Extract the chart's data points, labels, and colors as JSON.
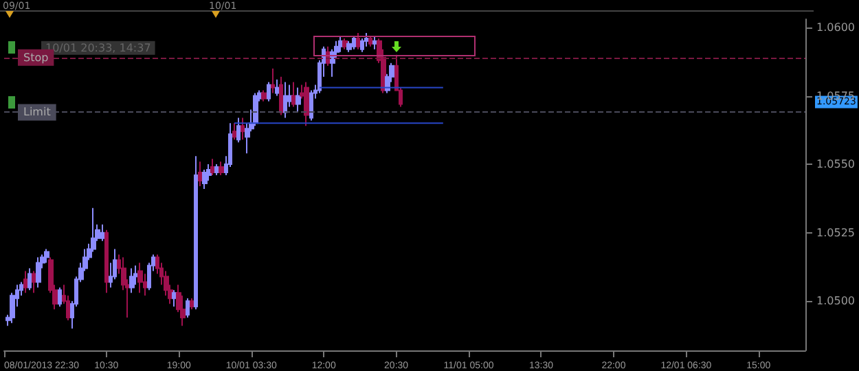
{
  "chart_data": {
    "type": "candlestick",
    "x": [
      "2013-01-08T23:00",
      "2013-01-08T23:30",
      "2013-01-09T00:00",
      "2013-01-09T00:30",
      "2013-01-09T01:00",
      "2013-01-09T01:30",
      "2013-01-09T02:00",
      "2013-01-09T02:30",
      "2013-01-09T03:00",
      "2013-01-09T03:30",
      "2013-01-09T04:00",
      "2013-01-09T04:30",
      "2013-01-09T05:00",
      "2013-01-09T05:30",
      "2013-01-09T06:00",
      "2013-01-09T06:30",
      "2013-01-09T07:00",
      "2013-01-09T07:30",
      "2013-01-09T08:00",
      "2013-01-09T08:30",
      "2013-01-09T09:00",
      "2013-01-09T09:30",
      "2013-01-09T10:00",
      "2013-01-09T10:30",
      "2013-01-09T11:00",
      "2013-01-09T11:30",
      "2013-01-09T12:00",
      "2013-01-09T12:30",
      "2013-01-09T13:00",
      "2013-01-09T13:30",
      "2013-01-09T14:00",
      "2013-01-09T14:30",
      "2013-01-09T15:00",
      "2013-01-09T15:30",
      "2013-01-09T16:00",
      "2013-01-09T16:30",
      "2013-01-09T17:00",
      "2013-01-09T17:30",
      "2013-01-09T18:00",
      "2013-01-09T18:30",
      "2013-01-09T19:00",
      "2013-01-09T19:30",
      "2013-01-09T20:00",
      "2013-01-09T20:30",
      "2013-01-09T21:00",
      "2013-01-09T21:30",
      "2013-01-09T22:00",
      "2013-01-09T22:30",
      "2013-01-09T23:00",
      "2013-01-09T23:30",
      "2013-01-10T00:00",
      "2013-01-10T00:30",
      "2013-01-10T01:00",
      "2013-01-10T01:30",
      "2013-01-10T02:00",
      "2013-01-10T02:30",
      "2013-01-10T03:00",
      "2013-01-10T03:30",
      "2013-01-10T04:00",
      "2013-01-10T04:30",
      "2013-01-10T05:00",
      "2013-01-10T05:30",
      "2013-01-10T06:00",
      "2013-01-10T06:30",
      "2013-01-10T07:00",
      "2013-01-10T07:30",
      "2013-01-10T08:00",
      "2013-01-10T08:30",
      "2013-01-10T09:00",
      "2013-01-10T09:30",
      "2013-01-10T10:00",
      "2013-01-10T10:30",
      "2013-01-10T11:00",
      "2013-01-10T11:30",
      "2013-01-10T12:00",
      "2013-01-10T12:30",
      "2013-01-10T13:00",
      "2013-01-10T13:30",
      "2013-01-10T14:00",
      "2013-01-10T14:30",
      "2013-01-10T15:00",
      "2013-01-10T15:30",
      "2013-01-10T16:00",
      "2013-01-10T16:30",
      "2013-01-10T17:00",
      "2013-01-10T17:30",
      "2013-01-10T18:00",
      "2013-01-10T18:30",
      "2013-01-10T19:00",
      "2013-01-10T19:30",
      "2013-01-10T20:00",
      "2013-01-10T20:30",
      "2013-01-10T21:00"
    ],
    "ohlc": [
      [
        1.0493,
        1.0495,
        1.0491,
        1.0494
      ],
      [
        1.0494,
        1.0503,
        1.0492,
        1.0502
      ],
      [
        1.0501,
        1.0506,
        1.0498,
        1.0504
      ],
      [
        1.0504,
        1.0507,
        1.0502,
        1.0506
      ],
      [
        1.0508,
        1.0511,
        1.0503,
        1.0505
      ],
      [
        1.0505,
        1.0512,
        1.0504,
        1.051
      ],
      [
        1.051,
        1.0511,
        1.0503,
        1.0507
      ],
      [
        1.0507,
        1.0516,
        1.0505,
        1.0514
      ],
      [
        1.0514,
        1.0517,
        1.0512,
        1.0516
      ],
      [
        1.0516,
        1.0519,
        1.0514,
        1.0518
      ],
      [
        1.0515,
        1.0516,
        1.0503,
        1.0504
      ],
      [
        1.0504,
        1.0506,
        1.0497,
        1.0499
      ],
      [
        1.0499,
        1.0505,
        1.0498,
        1.0504
      ],
      [
        1.0502,
        1.0506,
        1.0499,
        1.05
      ],
      [
        1.05,
        1.0502,
        1.0493,
        1.0494
      ],
      [
        1.0494,
        1.05,
        1.049,
        1.0499
      ],
      [
        1.0499,
        1.0509,
        1.0498,
        1.0508
      ],
      [
        1.0508,
        1.0514,
        1.0507,
        1.0512
      ],
      [
        1.0512,
        1.0519,
        1.0511,
        1.0516
      ],
      [
        1.0516,
        1.0521,
        1.0515,
        1.0519
      ],
      [
        1.0519,
        1.0534,
        1.0518,
        1.0523
      ],
      [
        1.0523,
        1.0528,
        1.0522,
        1.0526
      ],
      [
        1.0523,
        1.0528,
        1.0522,
        1.0525
      ],
      [
        1.0525,
        1.0526,
        1.0503,
        1.0507
      ],
      [
        1.0507,
        1.0514,
        1.0505,
        1.0509
      ],
      [
        1.0509,
        1.0519,
        1.0508,
        1.0515
      ],
      [
        1.0515,
        1.0517,
        1.051,
        1.0512
      ],
      [
        1.0512,
        1.0516,
        1.0504,
        1.0506
      ],
      [
        1.0506,
        1.0508,
        1.0494,
        1.0505
      ],
      [
        1.0505,
        1.0512,
        1.0503,
        1.0509
      ],
      [
        1.0509,
        1.0513,
        1.0506,
        1.051
      ],
      [
        1.0511,
        1.0514,
        1.0503,
        1.0507
      ],
      [
        1.0507,
        1.051,
        1.0502,
        1.0505
      ],
      [
        1.0505,
        1.0514,
        1.0504,
        1.0513
      ],
      [
        1.0513,
        1.0517,
        1.0511,
        1.0516
      ],
      [
        1.0516,
        1.0517,
        1.051,
        1.0512
      ],
      [
        1.0512,
        1.0514,
        1.0506,
        1.0509
      ],
      [
        1.0509,
        1.0511,
        1.0502,
        1.0504
      ],
      [
        1.0504,
        1.0506,
        1.0499,
        1.0501
      ],
      [
        1.0501,
        1.0504,
        1.0498,
        1.0503
      ],
      [
        1.0503,
        1.0506,
        1.0496,
        1.0497
      ],
      [
        1.0497,
        1.0502,
        1.0491,
        1.0494
      ],
      [
        1.0495,
        1.0501,
        1.0494,
        1.05
      ],
      [
        1.05,
        1.0501,
        1.0497,
        1.0498
      ],
      [
        1.0498,
        1.0553,
        1.0497,
        1.0546
      ],
      [
        1.0547,
        1.0551,
        1.0542,
        1.0544
      ],
      [
        1.0543,
        1.0548,
        1.0541,
        1.0547
      ],
      [
        1.0546,
        1.055,
        1.0544,
        1.0548
      ],
      [
        1.0549,
        1.0552,
        1.0546,
        1.0547
      ],
      [
        1.0547,
        1.055,
        1.0546,
        1.0549
      ],
      [
        1.0549,
        1.0551,
        1.0546,
        1.0547
      ],
      [
        1.0547,
        1.0553,
        1.0546,
        1.055
      ],
      [
        1.055,
        1.0565,
        1.0549,
        1.0561
      ],
      [
        1.0562,
        1.0565,
        1.0559,
        1.056
      ],
      [
        1.0559,
        1.0567,
        1.0558,
        1.0564
      ],
      [
        1.0564,
        1.0567,
        1.0559,
        1.0562
      ],
      [
        1.056,
        1.0565,
        1.0554,
        1.0563
      ],
      [
        1.0563,
        1.057,
        1.0562,
        1.0565
      ],
      [
        1.0565,
        1.0576,
        1.0564,
        1.0575
      ],
      [
        1.0574,
        1.0577,
        1.0573,
        1.0576
      ],
      [
        1.0576,
        1.0577,
        1.0573,
        1.0574
      ],
      [
        1.0574,
        1.058,
        1.0573,
        1.0579
      ],
      [
        1.0579,
        1.0585,
        1.0576,
        1.0578
      ],
      [
        1.0576,
        1.0581,
        1.0575,
        1.0578
      ],
      [
        1.0579,
        1.0582,
        1.0568,
        1.0569
      ],
      [
        1.0569,
        1.058,
        1.0567,
        1.0575
      ],
      [
        1.0573,
        1.0579,
        1.0571,
        1.0575
      ],
      [
        1.0575,
        1.058,
        1.0571,
        1.0572
      ],
      [
        1.0572,
        1.0578,
        1.0569,
        1.0575
      ],
      [
        1.0576,
        1.0579,
        1.0574,
        1.0575
      ],
      [
        1.0578,
        1.058,
        1.0564,
        1.0568
      ],
      [
        1.0567,
        1.0577,
        1.0566,
        1.0576
      ],
      [
        1.0576,
        1.0579,
        1.0574,
        1.0577
      ],
      [
        1.0577,
        1.0588,
        1.0576,
        1.0587
      ],
      [
        1.0587,
        1.0593,
        1.0582,
        1.0592
      ],
      [
        1.0591,
        1.0593,
        1.0586,
        1.0587
      ],
      [
        1.0587,
        1.0592,
        1.0582,
        1.0591
      ],
      [
        1.0591,
        1.0595,
        1.0589,
        1.0593
      ],
      [
        1.0593,
        1.0597,
        1.0591,
        1.0595
      ],
      [
        1.0595,
        1.0596,
        1.0592,
        1.0593
      ],
      [
        1.0592,
        1.0595,
        1.0591,
        1.0594
      ],
      [
        1.0593,
        1.0597,
        1.0592,
        1.0596
      ],
      [
        1.0596,
        1.0598,
        1.0592,
        1.0593
      ],
      [
        1.0592,
        1.0596,
        1.0591,
        1.0595
      ],
      [
        1.0595,
        1.0598,
        1.0593,
        1.0596
      ],
      [
        1.0596,
        1.0597,
        1.0593,
        1.0594
      ],
      [
        1.0594,
        1.0597,
        1.0592,
        1.0595
      ],
      [
        1.0595,
        1.0596,
        1.0587,
        1.0588
      ],
      [
        1.0589,
        1.0592,
        1.0576,
        1.0577
      ],
      [
        1.0577,
        1.0583,
        1.0576,
        1.0582
      ],
      [
        1.0582,
        1.0587,
        1.058,
        1.0586
      ],
      [
        1.0586,
        1.059,
        1.0577,
        1.0577
      ],
      [
        1.0577,
        1.0578,
        1.0571,
        1.0572
      ]
    ],
    "colors": [
      "#8c8cff",
      "#8c8cff",
      "#8c8cff",
      "#8c8cff",
      "#a0104e",
      "#8c8cff",
      "#a0104e",
      "#8c8cff",
      "#8c8cff",
      "#8c8cff",
      "#a0104e",
      "#a0104e",
      "#8c8cff",
      "#a0104e",
      "#a0104e",
      "#8c8cff",
      "#8c8cff",
      "#8c8cff",
      "#8c8cff",
      "#8c8cff",
      "#8c8cff",
      "#8c8cff",
      "#8c8cff",
      "#a0104e",
      "#8c8cff",
      "#8c8cff",
      "#a0104e",
      "#a0104e",
      "#a0104e",
      "#8c8cff",
      "#8c8cff",
      "#a0104e",
      "#a0104e",
      "#8c8cff",
      "#8c8cff",
      "#a0104e",
      "#a0104e",
      "#a0104e",
      "#a0104e",
      "#8c8cff",
      "#a0104e",
      "#a0104e",
      "#8c8cff",
      "#a0104e",
      "#8c8cff",
      "#a0104e",
      "#8c8cff",
      "#8c8cff",
      "#a0104e",
      "#8c8cff",
      "#a0104e",
      "#8c8cff",
      "#8c8cff",
      "#a0104e",
      "#8c8cff",
      "#a0104e",
      "#8c8cff",
      "#8c8cff",
      "#8c8cff",
      "#8c8cff",
      "#a0104e",
      "#8c8cff",
      "#a0104e",
      "#8c8cff",
      "#a0104e",
      "#8c8cff",
      "#8c8cff",
      "#a0104e",
      "#8c8cff",
      "#a0104e",
      "#a0104e",
      "#8c8cff",
      "#8c8cff",
      "#8c8cff",
      "#8c8cff",
      "#a0104e",
      "#8c8cff",
      "#8c8cff",
      "#8c8cff",
      "#a0104e",
      "#8c8cff",
      "#8c8cff",
      "#a0104e",
      "#8c8cff",
      "#8c8cff",
      "#a0104e",
      "#8c8cff",
      "#a0104e",
      "#a0104e",
      "#8c8cff",
      "#8c8cff",
      "#a0104e",
      "#a0104e"
    ],
    "series": [
      {
        "type": "line",
        "x": [
          "2013-01-10T11:30",
          "2013-01-11T02:00"
        ],
        "values": [
          1.0578,
          1.0578
        ],
        "color": "#2846c8"
      },
      {
        "type": "line",
        "x": [
          "2013-01-10T01:30",
          "2013-01-11T02:00"
        ],
        "values": [
          1.0565,
          1.0565
        ],
        "color": "#2846c8"
      }
    ],
    "xlim": [
      "2013-01-08T22:30",
      "2013-01-12T20:30"
    ],
    "xticks": [
      {
        "value": "2013-01-08T22:30",
        "label": "08/01/2013 22:30"
      },
      {
        "value": "2013-01-09T10:30",
        "label": "10:30"
      },
      {
        "value": "2013-01-09T19:00",
        "label": "19:00"
      },
      {
        "value": "2013-01-10T03:30",
        "label": "10/01 03:30"
      },
      {
        "value": "2013-01-10T12:00",
        "label": "12:00"
      },
      {
        "value": "2013-01-10T20:30",
        "label": "20:30"
      },
      {
        "value": "2013-01-11T05:00",
        "label": "11/01 05:00"
      },
      {
        "value": "2013-01-11T13:30",
        "label": "13:30"
      },
      {
        "value": "2013-01-11T22:00",
        "label": "22:00"
      },
      {
        "value": "2013-01-12T06:30",
        "label": "12/01 06:30"
      },
      {
        "value": "2013-01-12T15:00",
        "label": "15:00"
      }
    ],
    "ylim": [
      1.0482,
      1.0603
    ],
    "yticks": [
      {
        "value": 1.05,
        "label": "1.0500"
      },
      {
        "value": 1.0525,
        "label": "1.0525"
      },
      {
        "value": 1.055,
        "label": "1.0550"
      },
      {
        "value": 1.0575,
        "label": "1.0575"
      },
      {
        "value": 1.06,
        "label": "1.0600"
      }
    ],
    "ref_lines": [
      {
        "axis": "y",
        "value": 1.0589,
        "label": "Stop",
        "color": "#7a1840",
        "line_style": "dashed"
      },
      {
        "axis": "y",
        "value": 1.0569,
        "label": "Limit",
        "color": "#4a4a5a",
        "line_style": "dashed"
      }
    ],
    "annotations": [
      "09/01",
      "10/01",
      "10/01 20:33, 14:37",
      "1.05723"
    ]
  }
}
